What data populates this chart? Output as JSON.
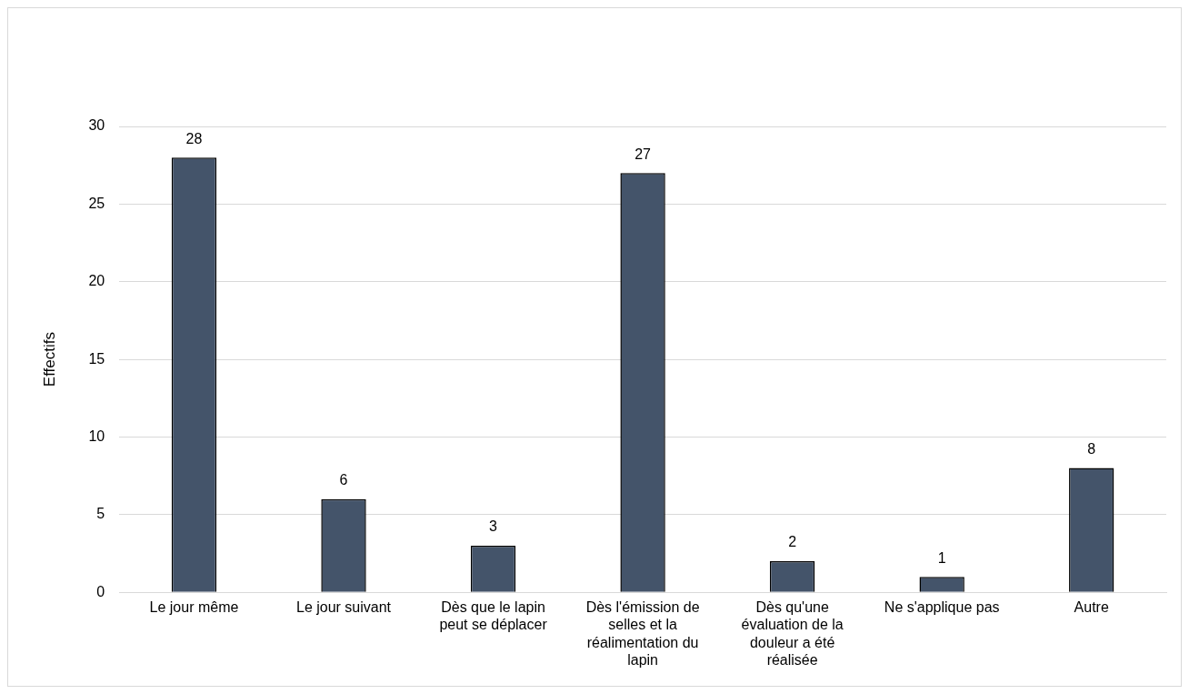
{
  "chart_data": {
    "type": "bar",
    "ylabel": "Effectifs",
    "categories": [
      "Le jour même",
      "Le jour suivant",
      "Dès que le lapin peut se déplacer",
      "Dès l'émission de selles et la réalimentation du lapin",
      "Dès qu'une évaluation de la douleur a été réalisée",
      "Ne s'applique pas",
      "Autre"
    ],
    "values": [
      28,
      6,
      3,
      27,
      2,
      1,
      8
    ],
    "color": "#44546a",
    "ylim": [
      0,
      30
    ],
    "yticks": [
      0,
      5,
      10,
      15,
      20,
      25,
      30
    ],
    "grid": "y",
    "legend": false,
    "data_labels": true
  }
}
